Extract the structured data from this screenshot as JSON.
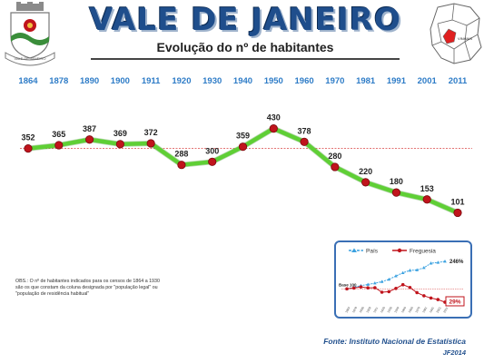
{
  "header": {
    "title": "VALE DE JANEIRO",
    "subtitle": "Evolução do nº de habitantes",
    "crest_text": "VALE DE JANEIRO",
    "map_label": "VINHAIS"
  },
  "colors": {
    "title": "#1f4e8c",
    "year": "#2e7cc7",
    "line": "#5fcf35",
    "marker": "#c0141c",
    "reference": "#d94444",
    "pais": "#3aa1e0"
  },
  "chart_data": [
    {
      "type": "line",
      "title": "Evolução do nº de habitantes",
      "categories": [
        "1864",
        "1878",
        "1890",
        "1900",
        "1911",
        "1920",
        "1930",
        "1940",
        "1950",
        "1960",
        "1970",
        "1981",
        "1991",
        "2001",
        "2011"
      ],
      "values": [
        352,
        365,
        387,
        369,
        372,
        288,
        300,
        359,
        430,
        378,
        280,
        220,
        180,
        153,
        101
      ],
      "reference_line": 352,
      "ylim": [
        60,
        450
      ],
      "grid": false
    },
    {
      "type": "line",
      "series": [
        {
          "name": "País",
          "values": [
            100,
            108,
            117,
            123,
            130,
            138,
            150,
            168,
            185,
            198,
            200,
            212,
            236,
            240,
            246
          ]
        },
        {
          "name": "Freguesia",
          "values": [
            100,
            104,
            110,
            105,
            106,
            82,
            85,
            102,
            122,
            107,
            80,
            63,
            51,
            43,
            29
          ]
        }
      ],
      "categories": [
        "1864",
        "1878",
        "1890",
        "1900",
        "1911",
        "1920",
        "1930",
        "1940",
        "1950",
        "1960",
        "1970",
        "1981",
        "1991",
        "2001",
        "2011"
      ],
      "base_label": "Base 100",
      "end_labels": {
        "pais": "246%",
        "freguesia": "29%"
      },
      "ylim": [
        0,
        270
      ],
      "legend": "top"
    }
  ],
  "note": "OBS.: O nº de habitantes indicados para os censos de 1864 a 1930 são os que constam da coluna designada por \"população legal\" ou \"população de residência habitual\"",
  "footer": {
    "source": "Fonte: Instituto Nacional de Estatística",
    "credit": "JF2014"
  }
}
